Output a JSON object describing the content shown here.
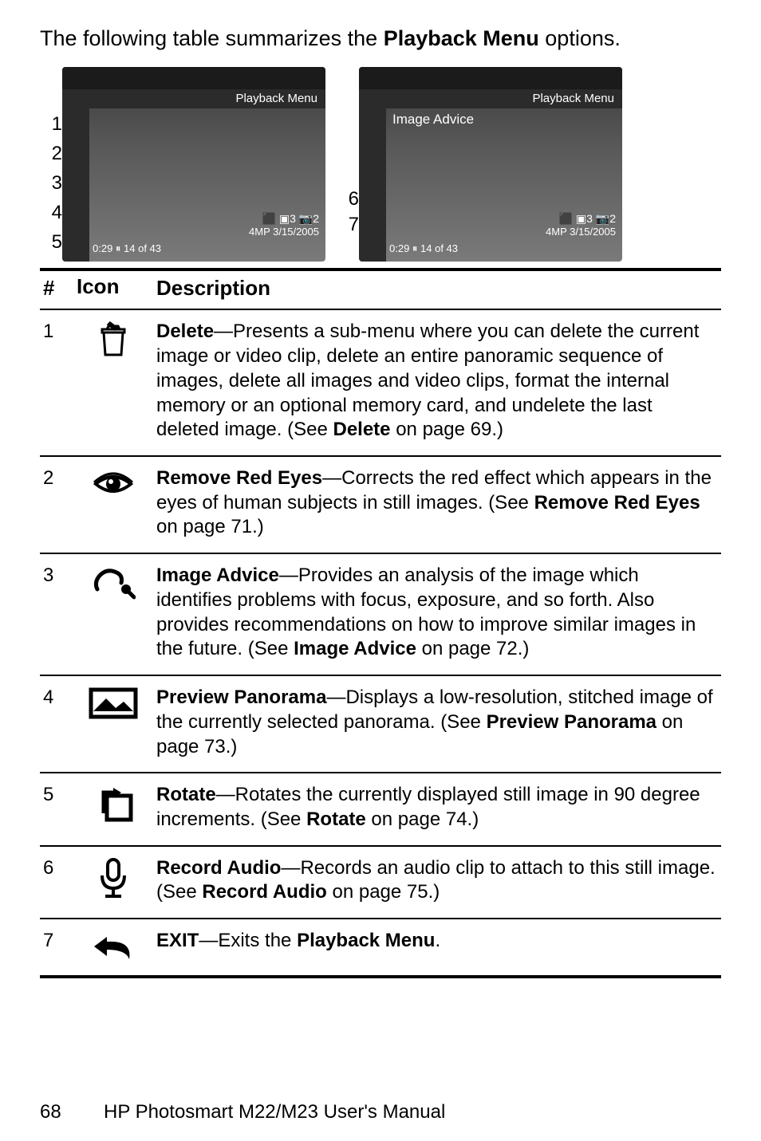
{
  "intro_prefix": "The following table summarizes the ",
  "intro_bold": "Playback Menu",
  "intro_suffix": " options.",
  "figure": {
    "left_callouts": [
      "1",
      "2",
      "3",
      "4",
      "5"
    ],
    "right_callouts": [
      "6",
      "7"
    ],
    "lcd_header": "Playback Menu",
    "advice_label": "Image Advice",
    "status_line1": "⬛ ▣3 📷2",
    "status_line2": "4MP  3/15/2005",
    "time_counter": "0:29 ⏸   14 of 43"
  },
  "table": {
    "headers": {
      "num": "#",
      "icon": "Icon",
      "desc": "Description"
    },
    "rows": [
      {
        "num": "1",
        "icon": "trash",
        "lead": "Delete",
        "body": "—Presents a sub-menu where you can delete the current image or video clip, delete an entire panoramic sequence of images, delete all images and video clips, format the internal memory or an optional memory card, and undelete the last deleted image. (See ",
        "ref": "Delete",
        "tail": " on page 69.)"
      },
      {
        "num": "2",
        "icon": "eye",
        "lead": "Remove Red Eyes",
        "body": "—Corrects the red effect which appears in the eyes of human subjects in still images. (See ",
        "ref": "Remove Red Eyes",
        "tail": " on page 71.)"
      },
      {
        "num": "3",
        "icon": "advice",
        "lead": "Image Advice",
        "body": "—Provides an analysis of the image which identifies problems with focus, exposure, and so forth. Also provides recommendations on how to improve similar images in the future. (See ",
        "ref": "Image Advice",
        "tail": " on page 72.)"
      },
      {
        "num": "4",
        "icon": "panorama",
        "lead": "Preview Panorama",
        "body": "—Displays a low-resolution, stitched image of the currently selected panorama. (See ",
        "ref": "Preview Panorama",
        "tail": " on page 73.)"
      },
      {
        "num": "5",
        "icon": "rotate",
        "lead": "Rotate",
        "body": "—Rotates the currently displayed still image in 90 degree increments. (See ",
        "ref": "Rotate",
        "tail": " on page 74.)"
      },
      {
        "num": "6",
        "icon": "mic",
        "lead": "Record Audio",
        "body": "—Records an audio clip to attach to this still image. (See ",
        "ref": "Record Audio",
        "tail": " on page 75.)"
      },
      {
        "num": "7",
        "icon": "back",
        "lead": "EXIT",
        "body": "—Exits the ",
        "ref": "Playback Menu",
        "tail": "."
      }
    ]
  },
  "footer": {
    "page": "68",
    "manual": "HP Photosmart M22/M23 User's Manual"
  },
  "icons": {
    "trash": "<svg width='48' height='48' viewBox='0 0 48 48'><path d='M12 14h24l-2 28H14z M10 10h28v4H10z M18 6h12l2 4H16z M20 2l8 6-2 2-8-6z' fill='none' stroke='#000' stroke-width='3'/></svg>",
    "eye": "<svg width='52' height='40' viewBox='0 0 52 40'><path d='M4 20 Q26 2 48 20 Q26 38 4 20 Z' fill='none' stroke='#000' stroke-width='4'/><circle cx='26' cy='20' r='9' fill='#000'/><circle cx='23' cy='17' r='3' fill='#fff'/><path d='M2 18 Q26 -4 50 18' fill='none' stroke='#000' stroke-width='3'/></svg>",
    "advice": "<svg width='56' height='44' viewBox='0 0 56 44'><path d='M8 30 Q4 22 10 14 Q20 2 34 10 Q40 14 38 22' fill='none' stroke='#000' stroke-width='5' stroke-linecap='round'/><circle cx='44' cy='30' r='6' fill='#000'/><path d='M48 34 L54 40' stroke='#000' stroke-width='5' stroke-linecap='round'/></svg>",
    "panorama": "<svg width='62' height='40' viewBox='0 0 62 40'><rect x='3' y='3' width='56' height='34' fill='none' stroke='#000' stroke-width='5'/><path d='M6 30 L22 14 L34 26 L44 18 L56 30 Z' fill='#000'/></svg>",
    "rotate": "<svg width='52' height='48' viewBox='0 0 52 48'><rect x='18' y='14' width='30' height='30' fill='none' stroke='#000' stroke-width='5'/><path d='M14 36 L14 10 L32 10' fill='none' stroke='#000' stroke-width='5'/><path d='M26 4 L36 10 L26 16 Z' fill='#000'/></svg>",
    "mic": "<svg width='40' height='52' viewBox='0 0 40 52'><rect x='13' y='2' width='14' height='26' rx='7' fill='none' stroke='#000' stroke-width='4'/><path d='M6 22 Q6 38 20 38 Q34 38 34 22' fill='none' stroke='#000' stroke-width='4'/><line x1='20' y1='38' x2='20' y2='48' stroke='#000' stroke-width='4'/><line x1='10' y1='48' x2='30' y2='48' stroke='#000' stroke-width='4'/></svg>",
    "back": "<svg width='56' height='40' viewBox='0 0 56 40'><path d='M20 8 L4 20 L20 32 L20 24 Q44 24 48 36 Q52 12 20 14 Z' fill='#000'/></svg>"
  }
}
